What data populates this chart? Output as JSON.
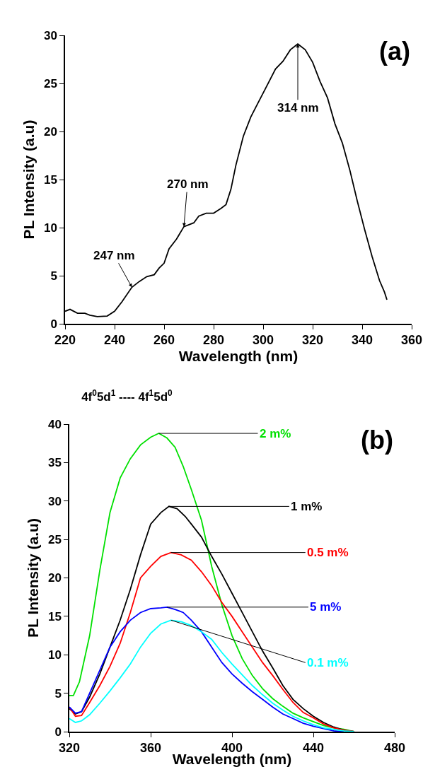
{
  "chart_data": [
    {
      "type": "line",
      "xlabel": "Wavelength (nm)",
      "ylabel": "PL Intensity (a.u)",
      "xlim": [
        220,
        360
      ],
      "xticks": [
        220,
        240,
        260,
        280,
        300,
        320,
        340,
        360
      ],
      "ylim": [
        0,
        30
      ],
      "yticks": [
        0,
        5,
        10,
        15,
        20,
        25,
        30
      ],
      "grid": false,
      "legend": false,
      "marker": "none",
      "line_style": "solid",
      "annotations": [
        "(a)",
        {
          "text": "247 nm",
          "x": 247,
          "y": 3.8
        },
        {
          "text": "270 nm",
          "x": 268,
          "y": 10.1
        },
        {
          "text": "314 nm",
          "x": 314,
          "y": 29.1
        }
      ],
      "series": [
        {
          "color": "#000000",
          "x": [
            220,
            222,
            225,
            228,
            230,
            233,
            237,
            240,
            243,
            247,
            250,
            253,
            256,
            258,
            260,
            262,
            265,
            268,
            272,
            274,
            277,
            280,
            283,
            285,
            287,
            289,
            292,
            295,
            298,
            301,
            305,
            308,
            311,
            314,
            317,
            320,
            323,
            326,
            329,
            332,
            335,
            338,
            341,
            344,
            347,
            349,
            350
          ],
          "values": [
            1.3,
            1.5,
            1.1,
            1.1,
            0.9,
            0.75,
            0.8,
            1.3,
            2.3,
            3.8,
            4.4,
            4.9,
            5.1,
            5.8,
            6.3,
            7.8,
            8.8,
            10.1,
            10.5,
            11.2,
            11.5,
            11.5,
            12,
            12.4,
            14,
            16.5,
            19.5,
            21.5,
            23,
            24.5,
            26.5,
            27.3,
            28.5,
            29.1,
            28.5,
            27.2,
            25.2,
            23.5,
            20.8,
            18.8,
            16,
            12.8,
            9.8,
            7,
            4.5,
            3.3,
            2.5
          ]
        }
      ]
    },
    {
      "type": "line",
      "title": "4f$^{0}$5d$^{1}$ ---- 4f$^{1}$5d$^{0}$",
      "xlabel": "Wavelength (nm)",
      "ylabel": "PL Intensity (a.u)",
      "xlim": [
        320,
        480
      ],
      "xticks": [
        320,
        360,
        400,
        440,
        480
      ],
      "ylim": [
        0,
        40
      ],
      "yticks": [
        0,
        5,
        10,
        15,
        20,
        25,
        30,
        35,
        40
      ],
      "grid": false,
      "legend": false,
      "marker": "none",
      "line_style": "solid",
      "annotations": [
        "(b)"
      ],
      "series": [
        {
          "name": "2 m%",
          "color": "#00e000",
          "x": [
            320,
            322,
            325,
            330,
            335,
            340,
            345,
            350,
            355,
            360,
            364,
            368,
            372,
            376,
            380,
            385,
            390,
            395,
            400,
            405,
            410,
            415,
            420,
            425,
            430,
            435,
            440,
            445,
            450,
            455,
            460
          ],
          "values": [
            4.7,
            4.7,
            6.5,
            12.5,
            21,
            28.5,
            33,
            35.5,
            37.3,
            38.3,
            38.8,
            38.2,
            37,
            34.5,
            31.5,
            27.5,
            21.5,
            16.5,
            12.5,
            9.5,
            7.3,
            5.6,
            4.3,
            3.3,
            2.4,
            1.8,
            1.3,
            0.8,
            0.5,
            0.3,
            0
          ]
        },
        {
          "name": "1 m%",
          "color": "#000000",
          "x": [
            320,
            323,
            326,
            330,
            335,
            340,
            345,
            350,
            355,
            360,
            365,
            369,
            373,
            377,
            380,
            385,
            390,
            395,
            400,
            405,
            410,
            415,
            420,
            425,
            430,
            435,
            440,
            445,
            450,
            455,
            460
          ],
          "values": [
            3,
            2.3,
            2.6,
            4.5,
            7.5,
            11,
            14.5,
            18.5,
            23,
            27,
            28.5,
            29.3,
            29,
            28,
            27,
            25.3,
            22.8,
            20.5,
            18,
            15.5,
            13,
            10.5,
            8.3,
            6,
            4.2,
            3,
            2,
            1.2,
            0.6,
            0.2,
            0
          ]
        },
        {
          "name": "0.5 m%",
          "color": "#ff0000",
          "x": [
            320,
            323,
            326,
            330,
            335,
            340,
            345,
            350,
            355,
            360,
            365,
            370,
            375,
            380,
            385,
            390,
            395,
            400,
            405,
            410,
            415,
            420,
            425,
            430,
            435,
            440,
            445,
            450,
            455,
            460
          ],
          "values": [
            3.2,
            2,
            2.1,
            3.8,
            6,
            8.5,
            11.5,
            15.5,
            20,
            21.5,
            22.8,
            23.3,
            23,
            22.3,
            20.8,
            19,
            16.8,
            15,
            13,
            11,
            9,
            7.3,
            5.5,
            3.8,
            2.5,
            1.8,
            1,
            0.5,
            0.2,
            0
          ]
        },
        {
          "name": "5 m%",
          "color": "#0000ff",
          "x": [
            320,
            323,
            326,
            330,
            335,
            340,
            345,
            350,
            355,
            360,
            365,
            368,
            372,
            376,
            380,
            385,
            390,
            395,
            400,
            405,
            410,
            415,
            420,
            425,
            430,
            435,
            440,
            445,
            450,
            455
          ],
          "values": [
            3.2,
            2.4,
            2.6,
            5,
            8,
            11,
            13,
            14.5,
            15.5,
            16,
            16.1,
            16.2,
            15.9,
            15.5,
            14.5,
            13,
            11,
            9,
            7.5,
            6.3,
            5.2,
            4.2,
            3.2,
            2.3,
            1.7,
            1.1,
            0.7,
            0.4,
            0.1,
            0
          ]
        },
        {
          "name": "0.1 m%",
          "color": "#00ffff",
          "x": [
            320,
            323,
            326,
            330,
            335,
            340,
            345,
            350,
            355,
            360,
            365,
            370,
            375,
            380,
            385,
            390,
            395,
            400,
            405,
            410,
            415,
            420,
            425,
            430,
            435,
            440,
            445,
            450,
            455,
            460
          ],
          "values": [
            1.7,
            1.2,
            1.4,
            2.2,
            3.7,
            5.3,
            7,
            8.8,
            11,
            12.8,
            14,
            14.5,
            14.3,
            13.8,
            13,
            12,
            10.3,
            8.8,
            7.4,
            6,
            4.8,
            3.7,
            2.8,
            2,
            1.4,
            0.9,
            0.5,
            0.3,
            0.1,
            0
          ]
        }
      ]
    }
  ]
}
